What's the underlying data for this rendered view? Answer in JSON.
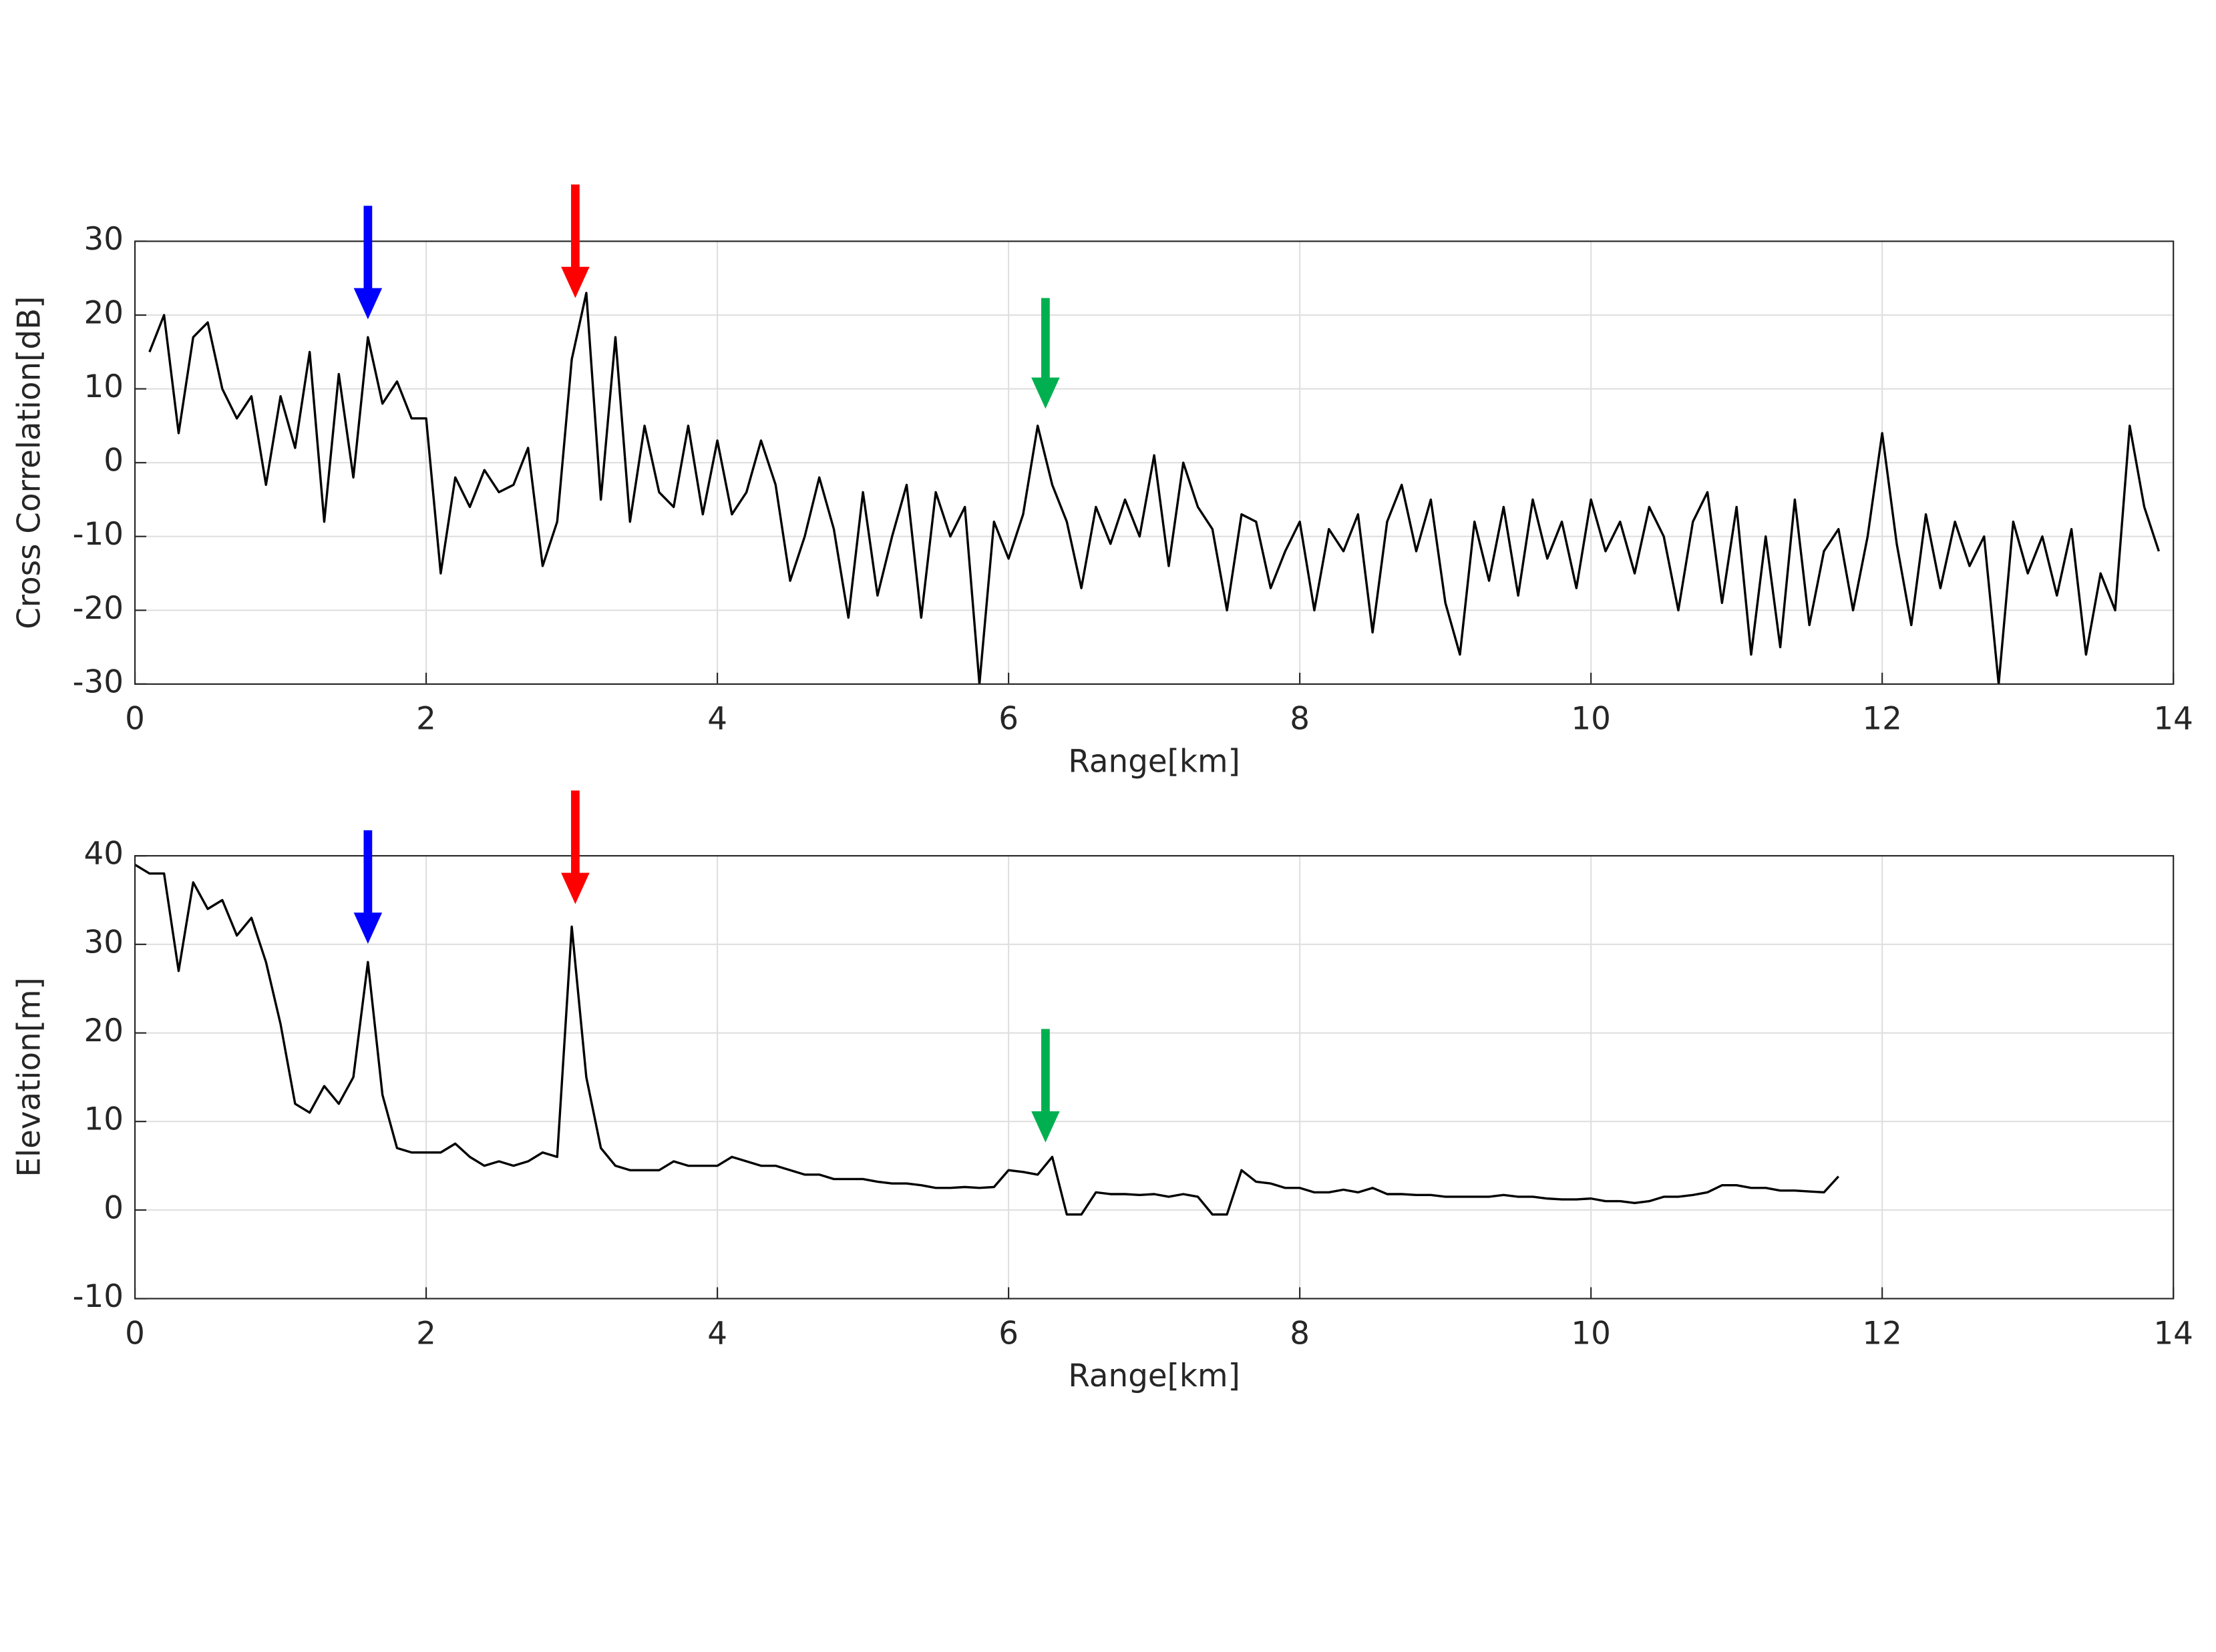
{
  "chart_data": [
    {
      "type": "line",
      "xlabel": "Range[km]",
      "ylabel": "Cross Correlation[dB]",
      "xlim": [
        0,
        14
      ],
      "xticks": [
        0,
        2,
        4,
        6,
        8,
        10,
        12,
        14
      ],
      "ylim": [
        -30,
        30
      ],
      "yticks": [
        -30,
        -20,
        -10,
        0,
        10,
        20,
        30
      ],
      "grid": true,
      "series": [
        {
          "color": "#000000",
          "x": [
            0.1,
            0.2,
            0.3,
            0.4,
            0.5,
            0.6,
            0.7,
            0.8,
            0.9,
            1.0,
            1.1,
            1.2,
            1.3,
            1.4,
            1.5,
            1.6,
            1.7,
            1.8,
            1.9,
            2.0,
            2.1,
            2.2,
            2.3,
            2.4,
            2.5,
            2.6,
            2.7,
            2.8,
            2.9,
            3.0,
            3.1,
            3.2,
            3.3,
            3.4,
            3.5,
            3.6,
            3.7,
            3.8,
            3.9,
            4.0,
            4.1,
            4.2,
            4.3,
            4.4,
            4.5,
            4.6,
            4.7,
            4.8,
            4.9,
            5.0,
            5.1,
            5.2,
            5.3,
            5.4,
            5.5,
            5.6,
            5.7,
            5.8,
            5.9,
            6.0,
            6.1,
            6.2,
            6.3,
            6.4,
            6.5,
            6.6,
            6.7,
            6.8,
            6.9,
            7.0,
            7.1,
            7.2,
            7.3,
            7.4,
            7.5,
            7.6,
            7.7,
            7.8,
            7.9,
            8.0,
            8.1,
            8.2,
            8.3,
            8.4,
            8.5,
            8.6,
            8.7,
            8.8,
            8.9,
            9.0,
            9.1,
            9.2,
            9.3,
            9.4,
            9.5,
            9.6,
            9.7,
            9.8,
            9.9,
            10.0,
            10.1,
            10.2,
            10.3,
            10.4,
            10.5,
            10.6,
            10.7,
            10.8,
            10.9,
            11.0,
            11.1,
            11.2,
            11.3,
            11.4,
            11.5,
            11.6,
            11.7,
            11.8,
            11.9,
            12.0,
            12.1,
            12.2,
            12.3,
            12.4,
            12.5,
            12.6,
            12.7,
            12.8,
            12.9,
            13.0,
            13.1,
            13.2,
            13.3,
            13.4,
            13.5,
            13.6,
            13.7,
            13.8,
            13.9
          ],
          "values": [
            15,
            20,
            4,
            17,
            19,
            10,
            6,
            9,
            -3,
            9,
            2,
            15,
            -8,
            12,
            -2,
            17,
            8,
            11,
            6,
            6,
            -15,
            -2,
            -6,
            -1,
            -4,
            -3,
            2,
            -14,
            -8,
            14,
            23,
            -5,
            17,
            -8,
            5,
            -4,
            -6,
            5,
            -7,
            3,
            -7,
            -4,
            3,
            -3,
            -16,
            -10,
            -2,
            -9,
            -21,
            -4,
            -18,
            -10,
            -3,
            -21,
            -4,
            -10,
            -6,
            -30,
            -8,
            -13,
            -7,
            5,
            -3,
            -8,
            -17,
            -6,
            -11,
            -5,
            -10,
            1,
            -14,
            0,
            -6,
            -9,
            -20,
            -7,
            -8,
            -17,
            -12,
            -8,
            -20,
            -9,
            -12,
            -7,
            -23,
            -8,
            -3,
            -12,
            -5,
            -19,
            -26,
            -8,
            -16,
            -6,
            -18,
            -5,
            -13,
            -8,
            -17,
            -5,
            -12,
            -8,
            -15,
            -6,
            -10,
            -20,
            -8,
            -4,
            -19,
            -6,
            -26,
            -10,
            -25,
            -5,
            -22,
            -12,
            -9,
            -20,
            -10,
            4,
            -11,
            -22,
            -7,
            -17,
            -8,
            -14,
            -10,
            -30,
            -8,
            -15,
            -10,
            -18,
            -9,
            -26,
            -15,
            -20,
            5,
            -6,
            -12
          ]
        }
      ]
    },
    {
      "type": "line",
      "xlabel": "Range[km]",
      "ylabel": "Elevation[m]",
      "xlim": [
        0,
        14
      ],
      "xticks": [
        0,
        2,
        4,
        6,
        8,
        10,
        12,
        14
      ],
      "ylim": [
        -10,
        40
      ],
      "yticks": [
        -10,
        0,
        10,
        20,
        30,
        40
      ],
      "grid": true,
      "series": [
        {
          "color": "#000000",
          "x": [
            0,
            0.1,
            0.2,
            0.3,
            0.4,
            0.5,
            0.6,
            0.7,
            0.8,
            0.9,
            1.0,
            1.1,
            1.2,
            1.3,
            1.4,
            1.5,
            1.6,
            1.7,
            1.8,
            1.9,
            2.0,
            2.1,
            2.2,
            2.3,
            2.4,
            2.5,
            2.6,
            2.7,
            2.8,
            2.9,
            3.0,
            3.1,
            3.2,
            3.3,
            3.4,
            3.5,
            3.6,
            3.7,
            3.8,
            3.9,
            4.0,
            4.1,
            4.2,
            4.3,
            4.4,
            4.5,
            4.6,
            4.7,
            4.8,
            4.9,
            5.0,
            5.1,
            5.2,
            5.3,
            5.4,
            5.5,
            5.6,
            5.7,
            5.8,
            5.9,
            6.0,
            6.1,
            6.2,
            6.3,
            6.4,
            6.5,
            6.6,
            6.7,
            6.8,
            6.9,
            7.0,
            7.1,
            7.2,
            7.3,
            7.4,
            7.5,
            7.6,
            7.7,
            7.8,
            7.9,
            8.0,
            8.1,
            8.2,
            8.3,
            8.4,
            8.5,
            8.6,
            8.7,
            8.8,
            8.9,
            9.0,
            9.1,
            9.2,
            9.3,
            9.4,
            9.5,
            9.6,
            9.7,
            9.8,
            9.9,
            10.0,
            10.1,
            10.2,
            10.3,
            10.4,
            10.5,
            10.6,
            10.7,
            10.8,
            10.9,
            11.0,
            11.1,
            11.2,
            11.3,
            11.4,
            11.5,
            11.6,
            11.7
          ],
          "values": [
            39,
            38,
            38,
            27,
            37,
            34,
            35,
            31,
            33,
            28,
            21,
            12,
            11,
            14,
            12,
            15,
            28,
            13,
            7,
            6.5,
            6.5,
            6.5,
            7.5,
            6,
            5,
            5.5,
            5,
            5.5,
            6.5,
            6,
            32,
            15,
            7,
            5,
            4.5,
            4.5,
            4.5,
            5.5,
            5,
            5,
            5,
            6,
            5.5,
            5,
            5,
            4.5,
            4,
            4,
            3.5,
            3.5,
            3.5,
            3.2,
            3,
            3,
            2.8,
            2.5,
            2.5,
            2.6,
            2.5,
            2.6,
            4.5,
            4.3,
            4,
            6,
            -0.5,
            -0.5,
            2,
            1.8,
            1.8,
            1.7,
            1.8,
            1.5,
            1.8,
            1.5,
            -0.5,
            -0.5,
            4.5,
            3.2,
            3,
            2.5,
            2.5,
            2,
            2,
            2.3,
            2,
            2.5,
            1.8,
            1.8,
            1.7,
            1.7,
            1.5,
            1.5,
            1.5,
            1.5,
            1.7,
            1.5,
            1.5,
            1.3,
            1.2,
            1.2,
            1.3,
            1,
            1,
            0.8,
            1,
            1.5,
            1.5,
            1.7,
            2,
            2.8,
            2.8,
            2.5,
            2.5,
            2.2,
            2.2,
            2.1,
            2,
            3.8
          ]
        }
      ]
    }
  ]
}
